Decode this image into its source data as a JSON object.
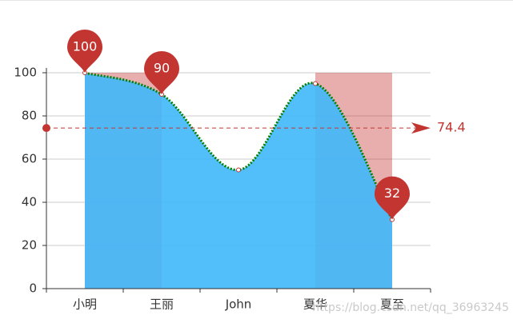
{
  "chart_data": {
    "type": "line",
    "categories": [
      "小明",
      "王丽",
      "John",
      "夏华",
      "夏至"
    ],
    "values": [
      100,
      90,
      55,
      95,
      32
    ],
    "color": "#008000",
    "area_color": "#3fb8fb",
    "ylim": [
      0,
      100
    ],
    "yticks": [
      0,
      20,
      40,
      60,
      80,
      100
    ],
    "grid": true,
    "mark_points": [
      {
        "category": "小明",
        "value": 100
      },
      {
        "category": "王丽",
        "value": 90
      },
      {
        "category": "夏至",
        "value": 32
      }
    ],
    "mark_point_color": "#c23531",
    "average_line": {
      "value": 74.4,
      "color": "#c23531"
    },
    "mark_areas": [
      [
        "小明",
        "王丽"
      ],
      [
        "夏华",
        "夏至"
      ]
    ],
    "mark_area_color": "#c23531",
    "watermark": "https://blog.csdn.net/qq_36963245"
  }
}
